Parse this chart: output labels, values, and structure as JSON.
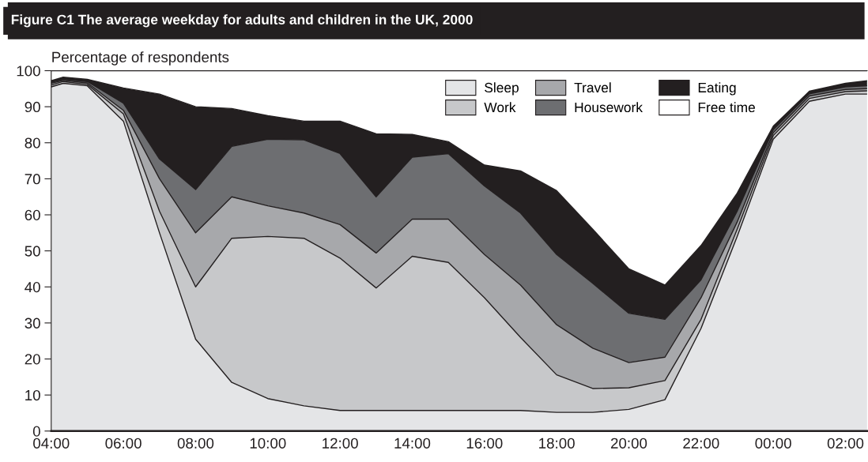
{
  "chart_data": {
    "type": "area",
    "stacked": true,
    "title": "Figure C1 The average weekday for adults and children in the UK, 2000",
    "ylabel": "Percentage of respondents",
    "x": [
      "2000-01-01T04:00",
      "2000-01-01T04:20",
      "2000-01-01T05:00",
      "2000-01-01T06:00",
      "2000-01-01T07:00",
      "2000-01-01T08:00",
      "2000-01-01T09:00",
      "2000-01-01T10:00",
      "2000-01-01T11:00",
      "2000-01-01T12:00",
      "2000-01-01T13:00",
      "2000-01-01T14:00",
      "2000-01-01T15:00",
      "2000-01-01T16:00",
      "2000-01-01T17:00",
      "2000-01-01T18:00",
      "2000-01-01T19:00",
      "2000-01-01T20:00",
      "2000-01-01T21:00",
      "2000-01-01T22:00",
      "2000-01-01T23:00",
      "2000-01-02T00:00",
      "2000-01-02T01:00",
      "2000-01-02T02:00",
      "2000-01-02T02:36"
    ],
    "series": [
      {
        "name": "Sleep",
        "color": "#e4e5e7",
        "values": [
          95.5,
          96.5,
          95.8,
          86,
          55,
          25.5,
          13.5,
          9,
          7,
          5.7,
          5.7,
          5.7,
          5.7,
          5.7,
          5.7,
          5.2,
          5.2,
          6,
          8.7,
          28.5,
          54,
          81,
          91.5,
          93.5,
          93.5
        ]
      },
      {
        "name": "Work",
        "color": "#c7c8ca",
        "values": [
          0.5,
          0.5,
          0.4,
          2,
          6,
          14.5,
          40,
          45,
          46.5,
          42.3,
          34,
          42.8,
          41.1,
          31.3,
          20.3,
          10.4,
          6.6,
          6,
          5.3,
          2.5,
          2,
          1,
          0.8,
          0.7,
          0.9
        ]
      },
      {
        "name": "Travel",
        "color": "#a7a8ab",
        "values": [
          0.5,
          0.3,
          0.4,
          1,
          9,
          15,
          11.5,
          8.5,
          7,
          9.3,
          9.7,
          10.3,
          12,
          12,
          14.5,
          13.9,
          11.2,
          7,
          6.5,
          6,
          2,
          0.8,
          0.7,
          0.6,
          0.6
        ]
      },
      {
        "name": "Housework",
        "color": "#6d6e71",
        "values": [
          0.3,
          0.3,
          0.4,
          2,
          5.5,
          12,
          14,
          18.5,
          20.3,
          19.7,
          15.6,
          17.2,
          18.2,
          19,
          20,
          19.5,
          18,
          13.7,
          10.5,
          5,
          3,
          0.8,
          0.6,
          0.7,
          0.8
        ]
      },
      {
        "name": "Eating",
        "color": "#231f20",
        "values": [
          0.4,
          0.6,
          0.6,
          4.2,
          18,
          23,
          10.5,
          6.5,
          5.2,
          9,
          17.5,
          6.3,
          3.3,
          5.8,
          11.7,
          17.7,
          15,
          12.3,
          9.5,
          9.5,
          5,
          1,
          0.7,
          1,
          1.4
        ]
      },
      {
        "name": "Free time",
        "color": "#ffffff",
        "values": [
          2.8,
          1.8,
          2.4,
          4.8,
          6.5,
          10,
          10.5,
          12.5,
          14,
          14,
          17.5,
          17.7,
          19.7,
          26.2,
          27.8,
          33.3,
          44,
          55,
          59.5,
          48.5,
          34,
          15.4,
          5.7,
          3.5,
          2.8
        ]
      }
    ],
    "xlim": [
      "2000-01-01T04:00",
      "2000-01-02T02:36"
    ],
    "xticks": [
      {
        "value": "2000-01-01T04:00",
        "label": "04:00"
      },
      {
        "value": "2000-01-01T06:00",
        "label": "06:00"
      },
      {
        "value": "2000-01-01T08:00",
        "label": "08:00"
      },
      {
        "value": "2000-01-01T10:00",
        "label": "10:00"
      },
      {
        "value": "2000-01-01T12:00",
        "label": "12:00"
      },
      {
        "value": "2000-01-01T14:00",
        "label": "14:00"
      },
      {
        "value": "2000-01-01T16:00",
        "label": "16:00"
      },
      {
        "value": "2000-01-01T18:00",
        "label": "18:00"
      },
      {
        "value": "2000-01-01T20:00",
        "label": "20:00"
      },
      {
        "value": "2000-01-01T22:00",
        "label": "22:00"
      },
      {
        "value": "2000-01-02T00:00",
        "label": "00:00"
      },
      {
        "value": "2000-01-02T02:00",
        "label": "02:00"
      }
    ],
    "ylim": [
      0,
      100
    ],
    "yticks": [
      0,
      10,
      20,
      30,
      40,
      50,
      60,
      70,
      80,
      90,
      100
    ],
    "legend": "top right"
  }
}
